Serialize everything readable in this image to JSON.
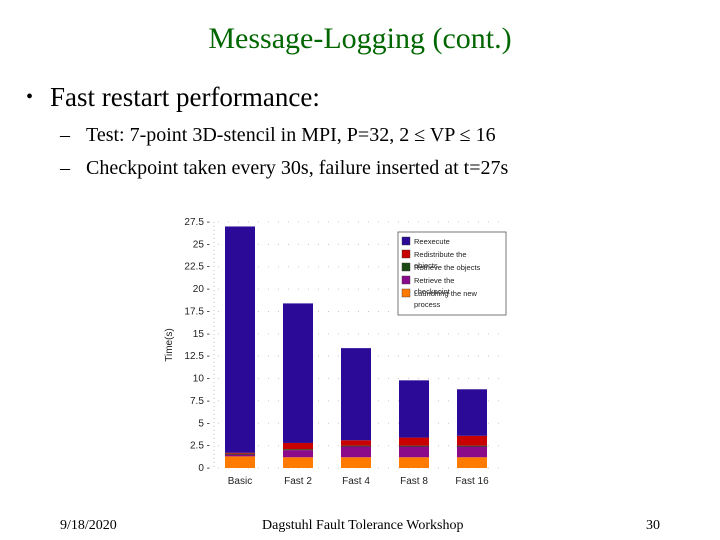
{
  "slide": {
    "title": "Message-Logging (cont.)",
    "bullet": "Fast restart performance:",
    "bullet_marker": "•",
    "sub_marker": "–",
    "sub_bullets": [
      "Test: 7-point 3D-stencil in MPI, P=32, 2 ≤ VP ≤ 16",
      "Checkpoint taken every 30s, failure inserted at t=27s"
    ]
  },
  "footer": {
    "date": "9/18/2020",
    "conference": "Dagstuhl Fault Tolerance Workshop",
    "page": "30"
  },
  "chart_data": {
    "type": "bar",
    "stacked": true,
    "categories": [
      "Basic",
      "Fast 2",
      "Fast 4",
      "Fast 8",
      "Fast 16"
    ],
    "ylabel": "Time(s)",
    "xlabel": "",
    "ylim": [
      0,
      27.5
    ],
    "yticks": [
      0,
      2.5,
      5,
      7.5,
      10,
      12.5,
      15,
      17.5,
      20,
      22.5,
      25,
      27.5
    ],
    "ytick_labels": [
      "0",
      "2.5",
      "5",
      "7.5",
      "10",
      "12.5",
      "15",
      "17.5",
      "20",
      "22.5",
      "25",
      "27.5"
    ],
    "grid": true,
    "legend_position": "top-right",
    "series": [
      {
        "name": "Launching the new process",
        "color": "#ff7b00",
        "values": [
          1.3,
          1.2,
          1.2,
          1.2,
          1.2
        ]
      },
      {
        "name": "Retrieve the checkpoint",
        "color": "#8a0a8a",
        "values": [
          0.2,
          0.8,
          1.2,
          1.2,
          1.2
        ]
      },
      {
        "name": "Retrieve the objects",
        "color": "#1c4a14",
        "values": [
          0.1,
          0.1,
          0.1,
          0.1,
          0.1
        ]
      },
      {
        "name": "Redistribute the objects",
        "color": "#c80000",
        "values": [
          0.1,
          0.7,
          0.6,
          0.9,
          1.1
        ]
      },
      {
        "name": "Reexecute",
        "color": "#2a0a96",
        "values": [
          25.3,
          15.6,
          10.3,
          6.4,
          5.2
        ]
      }
    ]
  }
}
